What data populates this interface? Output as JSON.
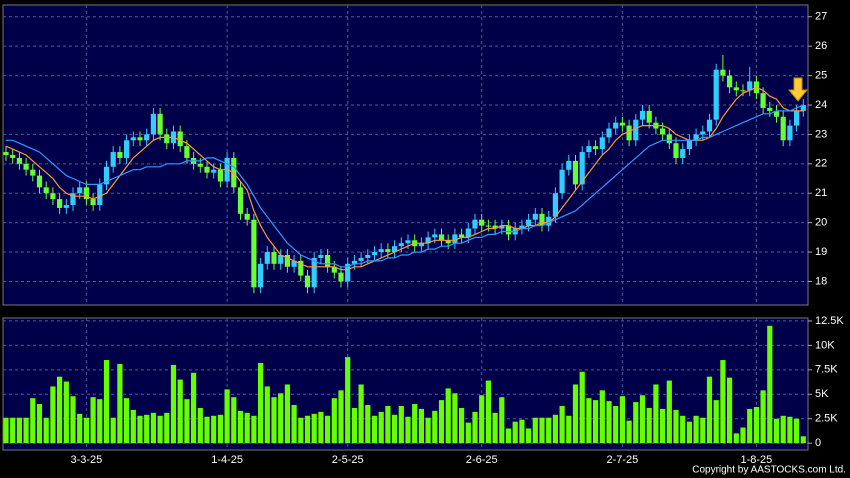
{
  "chart_data": {
    "type": "candlestick",
    "categories": [
      null,
      null,
      null,
      null,
      null,
      null,
      null,
      null,
      null,
      null,
      null,
      null,
      "3-3-25",
      null,
      null,
      null,
      null,
      null,
      null,
      null,
      null,
      null,
      null,
      null,
      null,
      null,
      null,
      null,
      null,
      null,
      null,
      null,
      null,
      "1-4-25",
      null,
      null,
      null,
      null,
      null,
      null,
      null,
      null,
      null,
      null,
      null,
      null,
      null,
      null,
      null,
      null,
      null,
      "2-5-25",
      null,
      null,
      null,
      null,
      null,
      null,
      null,
      null,
      null,
      null,
      null,
      null,
      null,
      null,
      null,
      null,
      null,
      null,
      null,
      "2-6-25",
      null,
      null,
      null,
      null,
      null,
      null,
      null,
      null,
      null,
      null,
      null,
      null,
      null,
      null,
      null,
      null,
      null,
      null,
      null,
      null,
      "2-7-25",
      null,
      null,
      null,
      null,
      null,
      null,
      null,
      null,
      null,
      null,
      null,
      null,
      null,
      null,
      null,
      null,
      null,
      null,
      null,
      "1-8-25",
      null,
      null,
      null,
      null,
      null,
      null,
      null
    ],
    "open": [
      22.4,
      22.3,
      22.2,
      22.0,
      21.8,
      21.6,
      21.2,
      21.0,
      20.8,
      20.5,
      20.6,
      21.0,
      21.2,
      20.8,
      20.6,
      21.3,
      21.9,
      22.4,
      22.2,
      22.8,
      22.9,
      22.8,
      23.0,
      23.7,
      23.0,
      22.7,
      23.1,
      22.6,
      22.2,
      22.0,
      21.9,
      21.7,
      21.8,
      21.4,
      22.2,
      21.2,
      20.3,
      20.1,
      17.8,
      18.6,
      19.0,
      18.6,
      18.9,
      18.5,
      18.7,
      18.2,
      17.8,
      18.8,
      18.9,
      18.5,
      18.3,
      18.0,
      18.6,
      18.7,
      18.8,
      18.9,
      19.0,
      19.1,
      19.0,
      19.2,
      19.3,
      19.4,
      19.2,
      19.3,
      19.5,
      19.6,
      19.4,
      19.3,
      19.6,
      19.5,
      19.8,
      20.1,
      19.9,
      19.9,
      19.8,
      19.9,
      19.6,
      19.8,
      19.9,
      20.1,
      20.3,
      19.9,
      20.2,
      21.0,
      21.8,
      22.1,
      21.3,
      22.4,
      22.6,
      22.5,
      22.9,
      23.2,
      23.4,
      23.3,
      22.8,
      23.5,
      23.8,
      23.4,
      23.2,
      23.0,
      22.7,
      22.2,
      22.5,
      22.8,
      23.0,
      23.1,
      23.5,
      25.2,
      25.0,
      24.6,
      24.5,
      24.5,
      24.8,
      24.4,
      23.9,
      23.8,
      23.6,
      22.8,
      23.3,
      23.8
    ],
    "high": [
      22.6,
      22.5,
      22.4,
      22.2,
      22.0,
      21.8,
      21.4,
      21.2,
      21.0,
      20.8,
      21.2,
      21.4,
      21.4,
      21.0,
      21.5,
      22.1,
      22.6,
      22.6,
      23.0,
      23.1,
      23.1,
      23.2,
      23.9,
      23.9,
      23.2,
      23.3,
      23.3,
      22.8,
      22.4,
      22.2,
      22.1,
      22.0,
      22.0,
      22.4,
      22.4,
      21.4,
      20.5,
      20.3,
      18.8,
      19.2,
      19.2,
      19.1,
      19.1,
      18.9,
      18.9,
      18.4,
      19.0,
      19.1,
      19.1,
      18.7,
      18.5,
      18.8,
      18.9,
      19.0,
      19.1,
      19.2,
      19.3,
      19.3,
      19.4,
      19.5,
      19.6,
      19.6,
      19.5,
      19.7,
      19.8,
      19.8,
      19.6,
      19.8,
      19.8,
      20.0,
      20.3,
      20.3,
      20.1,
      20.1,
      20.1,
      20.1,
      20.0,
      20.1,
      20.3,
      20.5,
      20.5,
      20.4,
      21.2,
      22.0,
      22.3,
      22.3,
      22.6,
      22.8,
      22.8,
      23.1,
      23.4,
      23.6,
      23.6,
      23.5,
      23.7,
      24.0,
      24.0,
      23.6,
      23.4,
      23.2,
      22.9,
      22.7,
      23.0,
      23.2,
      23.3,
      23.7,
      25.4,
      25.7,
      25.2,
      24.8,
      24.7,
      25.3,
      25.0,
      24.6,
      24.1,
      24.0,
      23.8,
      23.5,
      24.0,
      24.2
    ],
    "low": [
      22.1,
      22.0,
      21.8,
      21.6,
      21.4,
      21.0,
      20.8,
      20.6,
      20.3,
      20.3,
      20.4,
      20.8,
      20.6,
      20.4,
      20.4,
      21.1,
      21.7,
      22.0,
      22.0,
      22.6,
      22.6,
      22.6,
      22.8,
      22.8,
      22.5,
      22.5,
      22.4,
      22.0,
      21.8,
      21.7,
      21.5,
      21.5,
      21.2,
      21.2,
      21.0,
      20.1,
      19.9,
      17.6,
      17.6,
      18.4,
      18.4,
      18.4,
      18.3,
      18.3,
      18.0,
      17.6,
      17.6,
      18.6,
      18.3,
      18.1,
      17.8,
      17.8,
      18.4,
      18.5,
      18.6,
      18.7,
      18.8,
      18.8,
      18.8,
      19.0,
      19.1,
      19.0,
      19.0,
      19.1,
      19.3,
      19.2,
      19.1,
      19.1,
      19.3,
      19.3,
      19.6,
      19.7,
      19.7,
      19.6,
      19.6,
      19.4,
      19.4,
      19.6,
      19.7,
      19.9,
      19.7,
      19.7,
      20.0,
      20.8,
      21.6,
      21.1,
      21.1,
      22.2,
      22.3,
      22.3,
      22.7,
      23.0,
      23.1,
      22.6,
      22.6,
      23.3,
      23.2,
      23.0,
      22.8,
      22.5,
      22.0,
      22.0,
      22.3,
      22.6,
      22.8,
      22.9,
      23.3,
      24.8,
      24.4,
      24.3,
      24.3,
      24.3,
      24.2,
      23.7,
      23.6,
      23.4,
      22.6,
      22.6,
      23.1,
      23.6
    ],
    "close": [
      22.3,
      22.2,
      22.0,
      21.8,
      21.6,
      21.2,
      21.0,
      20.8,
      20.5,
      20.6,
      21.0,
      21.2,
      20.8,
      20.6,
      21.3,
      21.9,
      22.4,
      22.2,
      22.8,
      22.9,
      22.8,
      23.0,
      23.7,
      23.0,
      22.7,
      23.1,
      22.6,
      22.2,
      22.0,
      21.9,
      21.7,
      21.8,
      21.4,
      22.2,
      21.2,
      20.3,
      20.1,
      17.8,
      18.6,
      19.0,
      18.6,
      18.9,
      18.5,
      18.7,
      18.2,
      17.8,
      18.8,
      18.9,
      18.5,
      18.3,
      18.0,
      18.6,
      18.7,
      18.8,
      18.9,
      19.0,
      19.1,
      19.0,
      19.2,
      19.3,
      19.4,
      19.2,
      19.3,
      19.5,
      19.6,
      19.4,
      19.3,
      19.6,
      19.5,
      19.8,
      20.1,
      19.9,
      19.9,
      19.8,
      19.9,
      19.6,
      19.8,
      19.9,
      20.1,
      20.3,
      19.9,
      20.2,
      21.0,
      21.8,
      22.1,
      21.3,
      22.4,
      22.6,
      22.5,
      22.9,
      23.2,
      23.4,
      23.3,
      22.8,
      23.5,
      23.8,
      23.4,
      23.2,
      23.0,
      22.7,
      22.2,
      22.5,
      22.8,
      23.0,
      23.1,
      23.5,
      25.2,
      25.0,
      24.6,
      24.5,
      24.5,
      24.8,
      24.4,
      23.9,
      23.8,
      23.6,
      22.8,
      23.3,
      23.8,
      24.0
    ],
    "up_color": "#33ccff",
    "down_color": "#66ff33",
    "lines": [
      {
        "color": "#ff9933",
        "values": [
          22.6,
          22.5,
          22.4,
          22.3,
          22.1,
          21.9,
          21.7,
          21.5,
          21.2,
          21.0,
          20.9,
          20.9,
          20.9,
          20.8,
          20.9,
          21.0,
          21.3,
          21.6,
          21.9,
          22.2,
          22.4,
          22.6,
          22.8,
          22.9,
          22.9,
          22.9,
          22.8,
          22.7,
          22.5,
          22.3,
          22.1,
          21.9,
          21.8,
          21.8,
          21.7,
          21.4,
          21.1,
          20.4,
          19.9,
          19.5,
          19.2,
          18.9,
          18.8,
          18.7,
          18.6,
          18.5,
          18.5,
          18.5,
          18.5,
          18.5,
          18.4,
          18.4,
          18.5,
          18.5,
          18.6,
          18.7,
          18.8,
          18.9,
          19.0,
          19.1,
          19.2,
          19.3,
          19.3,
          19.3,
          19.4,
          19.4,
          19.4,
          19.4,
          19.5,
          19.5,
          19.6,
          19.7,
          19.8,
          19.8,
          19.9,
          19.9,
          19.8,
          19.8,
          19.9,
          19.9,
          20.0,
          20.0,
          20.2,
          20.5,
          20.8,
          21.1,
          21.4,
          21.7,
          22.0,
          22.3,
          22.5,
          22.8,
          23.0,
          23.1,
          23.2,
          23.3,
          23.3,
          23.3,
          23.3,
          23.2,
          23.0,
          22.9,
          22.8,
          22.8,
          22.8,
          22.9,
          23.2,
          23.6,
          23.9,
          24.2,
          24.4,
          24.5,
          24.6,
          24.5,
          24.3,
          24.2,
          23.9,
          23.8,
          23.8,
          23.8
        ]
      },
      {
        "color": "#3399ff",
        "values": [
          22.8,
          22.8,
          22.7,
          22.6,
          22.5,
          22.4,
          22.2,
          22.0,
          21.8,
          21.6,
          21.5,
          21.4,
          21.3,
          21.3,
          21.3,
          21.4,
          21.5,
          21.6,
          21.7,
          21.8,
          21.8,
          21.9,
          21.9,
          21.9,
          22.0,
          22.0,
          22.0,
          22.1,
          22.1,
          22.1,
          22.2,
          22.2,
          22.1,
          22.0,
          21.9,
          21.6,
          21.3,
          20.9,
          20.5,
          20.2,
          19.9,
          19.6,
          19.3,
          19.1,
          18.9,
          18.8,
          18.7,
          18.6,
          18.6,
          18.6,
          18.5,
          18.5,
          18.6,
          18.6,
          18.7,
          18.7,
          18.7,
          18.8,
          18.8,
          18.9,
          18.9,
          19.0,
          19.0,
          19.1,
          19.1,
          19.2,
          19.2,
          19.3,
          19.3,
          19.4,
          19.5,
          19.5,
          19.6,
          19.6,
          19.7,
          19.7,
          19.7,
          19.8,
          19.8,
          19.9,
          19.9,
          20.0,
          20.1,
          20.2,
          20.3,
          20.4,
          20.6,
          20.8,
          21.0,
          21.2,
          21.4,
          21.6,
          21.8,
          22.0,
          22.2,
          22.4,
          22.6,
          22.7,
          22.8,
          22.8,
          22.8,
          22.8,
          22.8,
          22.8,
          22.9,
          22.9,
          23.0,
          23.1,
          23.2,
          23.3,
          23.4,
          23.5,
          23.6,
          23.7,
          23.7,
          23.8,
          23.8,
          23.8,
          23.9,
          24.0
        ]
      }
    ],
    "ylim": [
      17.2,
      27.4
    ],
    "yticks": [
      18,
      19,
      20,
      21,
      22,
      23,
      24,
      25,
      26,
      27
    ],
    "grid": true,
    "volume": {
      "color": "#66ff00",
      "values": [
        2600,
        2600,
        2600,
        2600,
        4600,
        4000,
        2600,
        5800,
        6800,
        6300,
        4800,
        3000,
        2600,
        4700,
        4500,
        8500,
        2600,
        8100,
        4600,
        3400,
        2800,
        2900,
        3100,
        2800,
        3100,
        8000,
        6500,
        4500,
        7200,
        3600,
        2700,
        2800,
        2900,
        5500,
        4700,
        3300,
        3100,
        2800,
        8200,
        5800,
        4700,
        5100,
        6000,
        3900,
        2600,
        2800,
        3000,
        3200,
        2800,
        4600,
        5400,
        8800,
        3600,
        6000,
        3900,
        2800,
        3200,
        3800,
        2900,
        3800,
        2700,
        4000,
        3500,
        2600,
        3300,
        4400,
        5600,
        5100,
        3600,
        2100,
        3200,
        4900,
        6400,
        3100,
        4700,
        1500,
        2200,
        2400,
        1500,
        2600,
        2600,
        2600,
        2900,
        3800,
        2800,
        6000,
        7300,
        4600,
        4400,
        5400,
        4300,
        3800,
        4800,
        2300,
        4200,
        4900,
        3600,
        6000,
        3500,
        6400,
        3400,
        2800,
        2200,
        2800,
        2600,
        6800,
        4400,
        8500,
        6700,
        1000,
        1600,
        3500,
        3700,
        5400,
        12000,
        2500,
        2800,
        2700,
        2500,
        700
      ],
      "ylim": [
        -700,
        12800
      ],
      "yticks": [
        0,
        {
          "value": 2500,
          "label": "2.5K"
        },
        {
          "value": 5000,
          "label": "5K"
        },
        {
          "value": 7500,
          "label": "7.5K"
        },
        {
          "value": 10000,
          "label": "10K"
        },
        {
          "value": 12500,
          "label": "12.5K"
        }
      ]
    },
    "copyright": "Copyright by AASTOCKS.com Ltd."
  }
}
